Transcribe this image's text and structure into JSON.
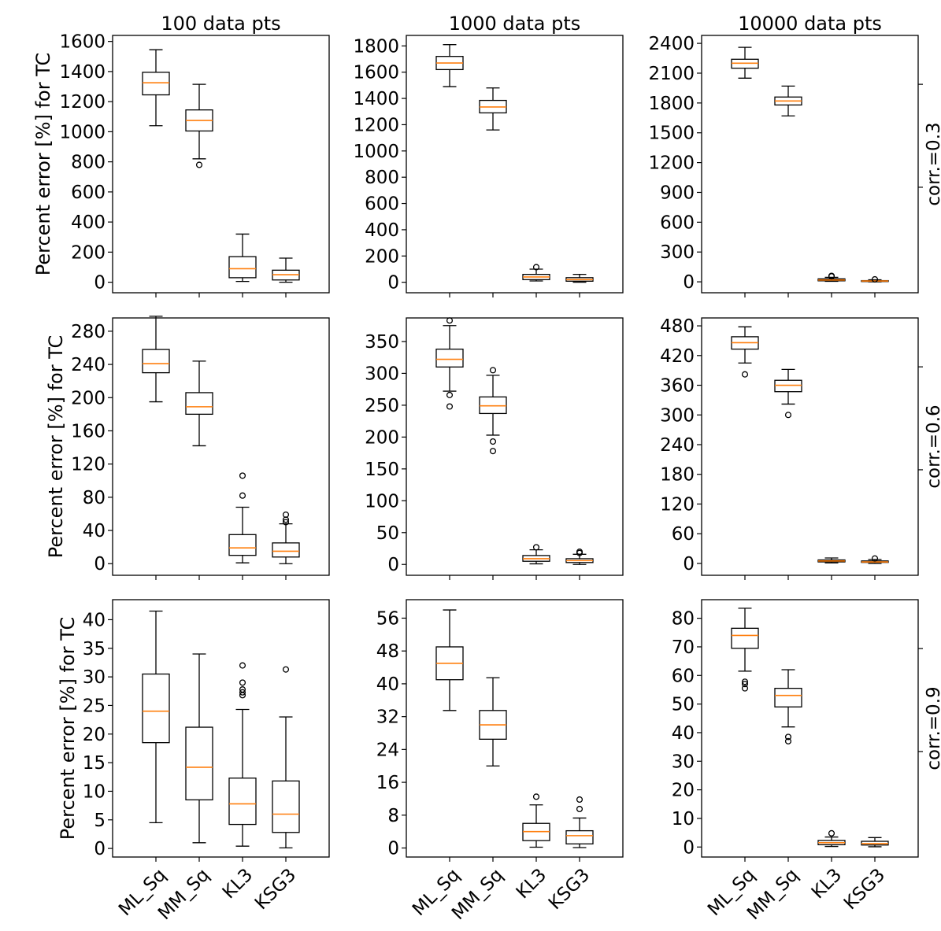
{
  "chart_data": {
    "type": "box",
    "categories": [
      "ML_Sq",
      "MM_Sq",
      "KL3",
      "KSG3"
    ],
    "column_titles": [
      "100 data pts",
      "1000 data pts",
      "10000 data pts"
    ],
    "row_labels": [
      "corr.=0.3",
      "corr.=0.6",
      "corr.=0.9"
    ],
    "ylabel": "Percent error [%] for TC",
    "colors": {
      "median": "#ff7f0e",
      "box": "#000000"
    },
    "panels": [
      [
        {
          "ylim": [
            -70,
            1640
          ],
          "yticks": [
            0,
            200,
            400,
            600,
            800,
            1000,
            1200,
            1400,
            1600
          ],
          "boxes": [
            {
              "whislo": 1040,
              "q1": 1245,
              "med": 1325,
              "q3": 1395,
              "whishi": 1545,
              "fliers": []
            },
            {
              "whislo": 820,
              "q1": 1005,
              "med": 1075,
              "q3": 1145,
              "whishi": 1315,
              "fliers": [
                780
              ]
            },
            {
              "whislo": 5,
              "q1": 30,
              "med": 90,
              "q3": 170,
              "whishi": 320,
              "fliers": []
            },
            {
              "whislo": 0,
              "q1": 15,
              "med": 50,
              "q3": 80,
              "whishi": 160,
              "fliers": []
            }
          ]
        },
        {
          "ylim": [
            -80,
            1880
          ],
          "yticks": [
            0,
            200,
            400,
            600,
            800,
            1000,
            1200,
            1400,
            1600,
            1800
          ],
          "boxes": [
            {
              "whislo": 1490,
              "q1": 1620,
              "med": 1670,
              "q3": 1720,
              "whishi": 1810,
              "fliers": []
            },
            {
              "whislo": 1160,
              "q1": 1290,
              "med": 1335,
              "q3": 1385,
              "whishi": 1480,
              "fliers": []
            },
            {
              "whislo": 10,
              "q1": 20,
              "med": 40,
              "q3": 60,
              "whishi": 100,
              "fliers": [
                115
              ]
            },
            {
              "whislo": 0,
              "q1": 8,
              "med": 20,
              "q3": 35,
              "whishi": 60,
              "fliers": []
            }
          ]
        },
        {
          "ylim": [
            -110,
            2480
          ],
          "yticks": [
            0,
            300,
            600,
            900,
            1200,
            1500,
            1800,
            2100,
            2400
          ],
          "boxes": [
            {
              "whislo": 2050,
              "q1": 2150,
              "med": 2200,
              "q3": 2240,
              "whishi": 2360,
              "fliers": []
            },
            {
              "whislo": 1670,
              "q1": 1780,
              "med": 1820,
              "q3": 1860,
              "whishi": 1970,
              "fliers": []
            },
            {
              "whislo": 5,
              "q1": 10,
              "med": 18,
              "q3": 30,
              "whishi": 45,
              "fliers": [
                55,
                60
              ]
            },
            {
              "whislo": 0,
              "q1": 3,
              "med": 8,
              "q3": 12,
              "whishi": 20,
              "fliers": [
                25
              ]
            }
          ]
        }
      ],
      [
        {
          "ylim": [
            -14,
            296
          ],
          "yticks": [
            0,
            40,
            80,
            120,
            160,
            200,
            240,
            280
          ],
          "boxes": [
            {
              "whislo": 195,
              "q1": 230,
              "med": 241,
              "q3": 258,
              "whishi": 298,
              "fliers": []
            },
            {
              "whislo": 142,
              "q1": 180,
              "med": 189,
              "q3": 206,
              "whishi": 244,
              "fliers": []
            },
            {
              "whislo": 1,
              "q1": 10,
              "med": 19,
              "q3": 35,
              "whishi": 68,
              "fliers": [
                82,
                106
              ]
            },
            {
              "whislo": 0,
              "q1": 8,
              "med": 15,
              "q3": 25,
              "whishi": 48,
              "fliers": [
                50,
                53,
                59
              ]
            }
          ]
        },
        {
          "ylim": [
            -17,
            387
          ],
          "yticks": [
            0,
            50,
            100,
            150,
            200,
            250,
            300,
            350
          ],
          "boxes": [
            {
              "whislo": 272,
              "q1": 310,
              "med": 322,
              "q3": 338,
              "whishi": 375,
              "fliers": [
                248,
                266,
                383
              ]
            },
            {
              "whislo": 203,
              "q1": 237,
              "med": 249,
              "q3": 263,
              "whishi": 297,
              "fliers": [
                178,
                193,
                305
              ]
            },
            {
              "whislo": 1,
              "q1": 5,
              "med": 9,
              "q3": 14,
              "whishi": 23,
              "fliers": [
                27
              ]
            },
            {
              "whislo": 0,
              "q1": 3,
              "med": 6,
              "q3": 9,
              "whishi": 16,
              "fliers": [
                18,
                20
              ]
            }
          ]
        },
        {
          "ylim": [
            -24,
            496
          ],
          "yticks": [
            0,
            60,
            120,
            180,
            240,
            300,
            360,
            420,
            480
          ],
          "boxes": [
            {
              "whislo": 405,
              "q1": 433,
              "med": 446,
              "q3": 458,
              "whishi": 478,
              "fliers": [
                382
              ]
            },
            {
              "whislo": 322,
              "q1": 347,
              "med": 360,
              "q3": 370,
              "whishi": 392,
              "fliers": [
                300
              ]
            },
            {
              "whislo": 1,
              "q1": 3,
              "med": 5,
              "q3": 7,
              "whishi": 11,
              "fliers": []
            },
            {
              "whislo": 0,
              "q1": 2,
              "med": 3,
              "q3": 5,
              "whishi": 8,
              "fliers": [
                10
              ]
            }
          ]
        }
      ],
      [
        {
          "ylim": [
            -1.5,
            43.5
          ],
          "yticks": [
            0,
            5,
            10,
            15,
            20,
            25,
            30,
            35,
            40
          ],
          "boxes": [
            {
              "whislo": 4.5,
              "q1": 18.5,
              "med": 24.0,
              "q3": 30.5,
              "whishi": 41.5,
              "fliers": []
            },
            {
              "whislo": 1.0,
              "q1": 8.5,
              "med": 14.2,
              "q3": 21.2,
              "whishi": 34.0,
              "fliers": []
            },
            {
              "whislo": 0.4,
              "q1": 4.2,
              "med": 7.8,
              "q3": 12.3,
              "whishi": 24.3,
              "fliers": [
                26.8,
                27.3,
                27.8,
                29.0,
                32.0
              ]
            },
            {
              "whislo": 0.1,
              "q1": 2.8,
              "med": 6.0,
              "q3": 11.8,
              "whishi": 23.0,
              "fliers": [
                31.3
              ]
            }
          ]
        },
        {
          "ylim": [
            -2.2,
            60.5
          ],
          "yticks": [
            0,
            8,
            16,
            24,
            32,
            40,
            48,
            56
          ],
          "boxes": [
            {
              "whislo": 33.5,
              "q1": 41.0,
              "med": 45.0,
              "q3": 49.0,
              "whishi": 58.0,
              "fliers": []
            },
            {
              "whislo": 20.0,
              "q1": 26.5,
              "med": 30.0,
              "q3": 33.5,
              "whishi": 41.5,
              "fliers": []
            },
            {
              "whislo": 0.2,
              "q1": 1.8,
              "med": 4.0,
              "q3": 6.0,
              "whishi": 10.5,
              "fliers": [
                12.5
              ]
            },
            {
              "whislo": 0.1,
              "q1": 1.0,
              "med": 3.0,
              "q3": 4.2,
              "whishi": 7.3,
              "fliers": [
                9.5,
                11.8
              ]
            }
          ]
        },
        {
          "ylim": [
            -3.5,
            86.5
          ],
          "yticks": [
            0,
            10,
            20,
            30,
            40,
            50,
            60,
            70,
            80
          ],
          "boxes": [
            {
              "whislo": 61.5,
              "q1": 69.5,
              "med": 74.0,
              "q3": 76.5,
              "whishi": 83.5,
              "fliers": [
                55.5,
                57.0,
                57.8
              ]
            },
            {
              "whislo": 42.0,
              "q1": 49.0,
              "med": 53.0,
              "q3": 55.5,
              "whishi": 62.0,
              "fliers": [
                37.0,
                38.5
              ]
            },
            {
              "whislo": 0.2,
              "q1": 0.8,
              "med": 1.5,
              "q3": 2.3,
              "whishi": 3.5,
              "fliers": [
                4.8
              ]
            },
            {
              "whislo": 0.1,
              "q1": 0.7,
              "med": 1.2,
              "q3": 2.0,
              "whishi": 3.3,
              "fliers": []
            }
          ]
        }
      ]
    ]
  }
}
